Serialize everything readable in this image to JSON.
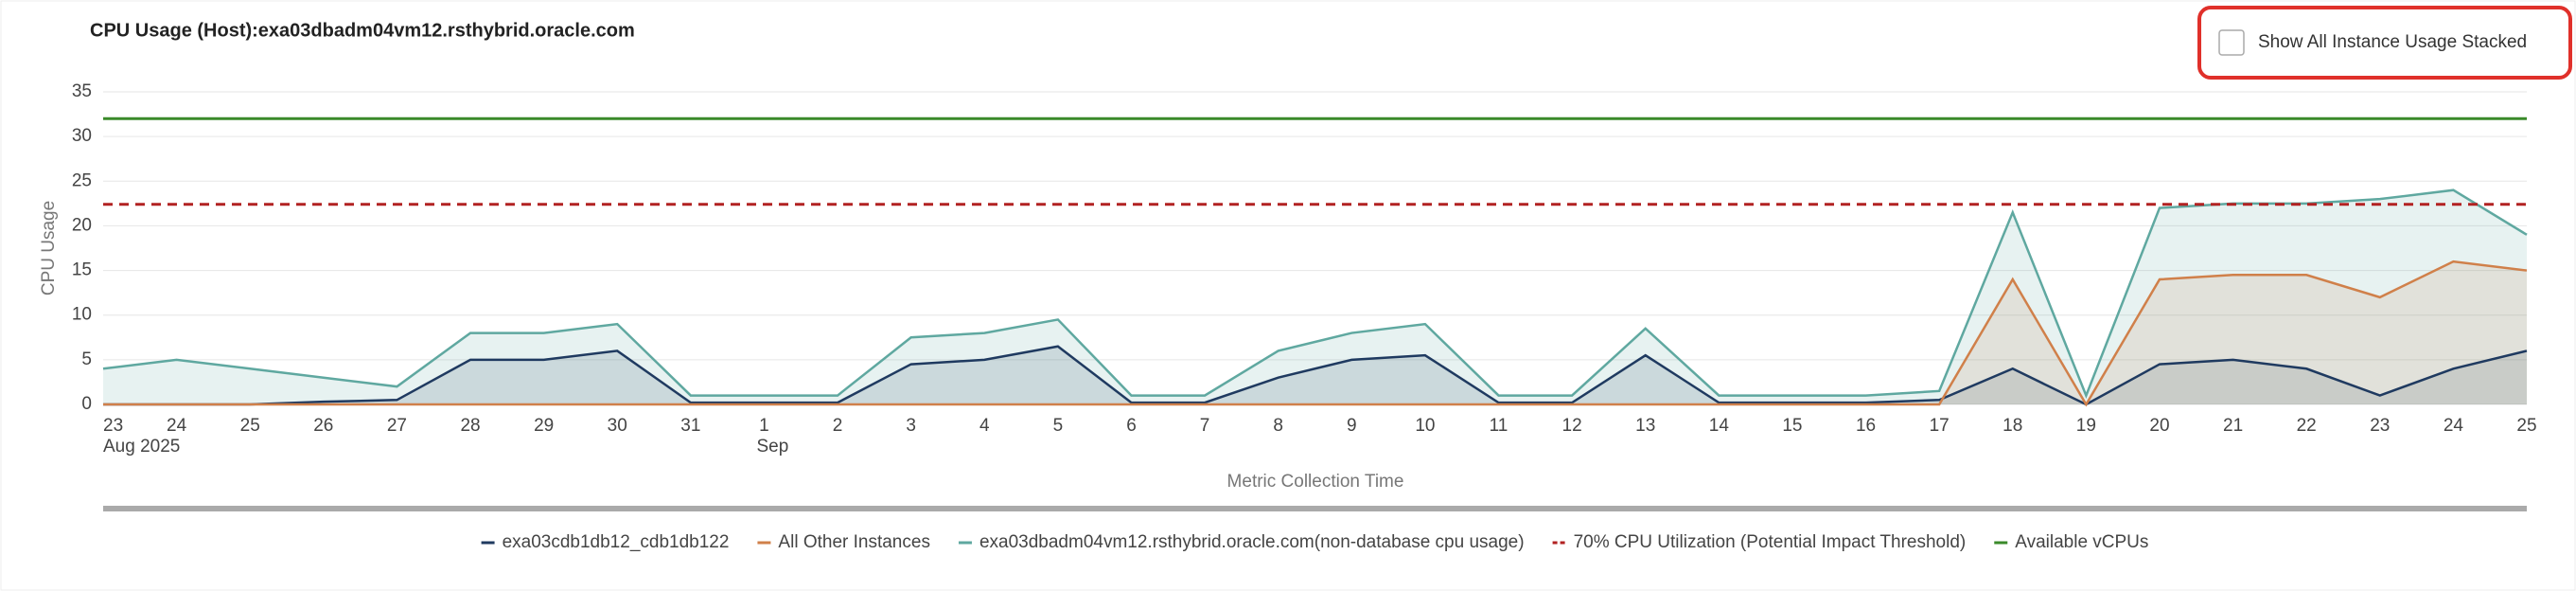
{
  "chart_data": {
    "type": "area-line",
    "title": "CPU Usage (Host):exa03dbadm04vm12.rsthybrid.oracle.com",
    "control_label": "Show All Instance Usage Stacked",
    "y_label": "CPU Usage",
    "x_label": "Metric Collection Time",
    "categories": [
      "23",
      "24",
      "25",
      "26",
      "27",
      "28",
      "29",
      "30",
      "31",
      "1",
      "2",
      "3",
      "4",
      "5",
      "6",
      "7",
      "8",
      "9",
      "10",
      "11",
      "12",
      "13",
      "14",
      "15",
      "16",
      "17",
      "18",
      "19",
      "20",
      "21",
      "22",
      "23",
      "24",
      "25"
    ],
    "category_sublabels": [
      "Aug 2025",
      null,
      null,
      null,
      null,
      null,
      null,
      null,
      null,
      "Sep",
      null,
      null,
      null,
      null,
      null,
      null,
      null,
      null,
      null,
      null,
      null,
      null,
      null,
      null,
      null,
      null,
      null,
      null,
      null,
      null,
      null,
      null,
      null,
      null
    ],
    "series": [
      {
        "name": "exa03cdb1db12_cdb1db122",
        "color": "#1f3a60",
        "values": [
          0,
          0,
          0,
          0.3,
          0.5,
          5,
          5,
          6,
          0.2,
          0.2,
          0.2,
          4.5,
          5,
          6.5,
          0.2,
          0.2,
          3,
          5,
          5.5,
          0.2,
          0.2,
          5.5,
          0.2,
          0.2,
          0.2,
          0.5,
          4,
          0,
          4.5,
          5,
          4,
          1,
          4,
          6
        ]
      },
      {
        "name": "All Other Instances",
        "color": "#d0804a",
        "values": [
          0,
          0,
          0,
          0,
          0,
          0,
          0,
          0,
          0,
          0,
          0,
          0,
          0,
          0,
          0,
          0,
          0,
          0,
          0,
          0,
          0,
          0,
          0,
          0,
          0,
          0,
          14,
          0,
          14,
          14.5,
          14.5,
          12,
          16,
          15
        ]
      },
      {
        "name": "exa03dbadm04vm12.rsthybrid.oracle.com(non-database cpu usage)",
        "color": "#5fa8a0",
        "values": [
          4,
          5,
          4,
          3,
          2,
          8,
          8,
          9,
          1,
          1,
          1,
          7.5,
          8,
          9.5,
          1,
          1,
          6,
          8,
          9,
          1,
          1,
          8.5,
          1,
          1,
          1,
          1.5,
          21.5,
          1,
          22,
          22.5,
          22.5,
          23,
          24,
          19
        ]
      }
    ],
    "reference_lines": [
      {
        "name": "70% CPU Utilization (Potential Impact Threshold)",
        "color": "#b22222",
        "dashed": true,
        "value": 22.4
      },
      {
        "name": "Available vCPUs",
        "color": "#3a8a2a",
        "dashed": false,
        "value": 32
      }
    ],
    "ylim": [
      0,
      35
    ],
    "yticks": [
      0,
      5,
      10,
      15,
      20,
      25,
      30,
      35
    ],
    "grid": true
  }
}
